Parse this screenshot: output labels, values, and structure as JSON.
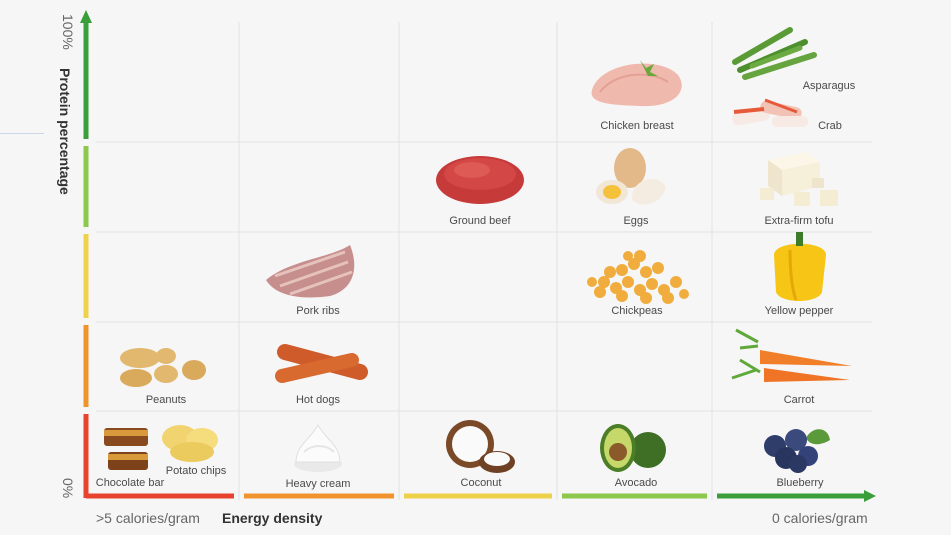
{
  "axes": {
    "y_title": "Protein percentage",
    "y_top": "100%",
    "y_bottom": "0%",
    "x_title": "Energy density",
    "x_left": ">5 calories/gram",
    "x_right": "0 calories/gram"
  },
  "colors": {
    "red": "#e8432f",
    "orange": "#f1932c",
    "yellow": "#eed24a",
    "lightgreen": "#8cc84b",
    "green": "#3a9e3a",
    "grid": "#e2e2e2"
  },
  "foods": [
    {
      "id": "chicken-breast",
      "label": "Chicken breast",
      "icon": "chicken-breast-image"
    },
    {
      "id": "asparagus",
      "label": "Asparagus",
      "icon": "asparagus-image"
    },
    {
      "id": "crab",
      "label": "Crab",
      "icon": "crab-image"
    },
    {
      "id": "ground-beef",
      "label": "Ground beef",
      "icon": "ground-beef-image"
    },
    {
      "id": "eggs",
      "label": "Eggs",
      "icon": "eggs-image"
    },
    {
      "id": "extra-firm-tofu",
      "label": "Extra-firm tofu",
      "icon": "tofu-image"
    },
    {
      "id": "pork-ribs",
      "label": "Pork ribs",
      "icon": "pork-ribs-image"
    },
    {
      "id": "chickpeas",
      "label": "Chickpeas",
      "icon": "chickpeas-image"
    },
    {
      "id": "yellow-pepper",
      "label": "Yellow pepper",
      "icon": "yellow-pepper-image"
    },
    {
      "id": "peanuts",
      "label": "Peanuts",
      "icon": "peanuts-image"
    },
    {
      "id": "hot-dogs",
      "label": "Hot dogs",
      "icon": "hot-dogs-image"
    },
    {
      "id": "carrot",
      "label": "Carrot",
      "icon": "carrot-image"
    },
    {
      "id": "chocolate-bar",
      "label": "Chocolate bar",
      "icon": "chocolate-bar-image"
    },
    {
      "id": "potato-chips",
      "label": "Potato chips",
      "icon": "potato-chips-image"
    },
    {
      "id": "heavy-cream",
      "label": "Heavy cream",
      "icon": "heavy-cream-image"
    },
    {
      "id": "coconut",
      "label": "Coconut",
      "icon": "coconut-image"
    },
    {
      "id": "avocado",
      "label": "Avocado",
      "icon": "avocado-image"
    },
    {
      "id": "blueberry",
      "label": "Blueberry",
      "icon": "blueberry-image"
    }
  ]
}
